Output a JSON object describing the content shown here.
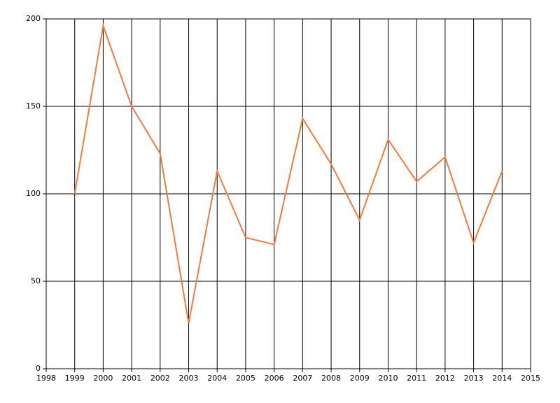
{
  "chart_data": {
    "type": "line",
    "x": [
      1999,
      2000,
      2001,
      2002,
      2003,
      2004,
      2005,
      2006,
      2007,
      2008,
      2009,
      2010,
      2011,
      2012,
      2013,
      2014
    ],
    "values": [
      100,
      196,
      150,
      123,
      26,
      113,
      75,
      71,
      143,
      117,
      85,
      131,
      107,
      121,
      72,
      113
    ],
    "color": "#f47a3c",
    "xlim": [
      1998,
      2015
    ],
    "xticks": [
      1998,
      1999,
      2000,
      2001,
      2002,
      2003,
      2004,
      2005,
      2006,
      2007,
      2008,
      2009,
      2010,
      2011,
      2012,
      2013,
      2014,
      2015
    ],
    "ylim": [
      0,
      200
    ],
    "yticks": [
      0,
      50,
      100,
      150,
      200
    ],
    "grid": true
  }
}
